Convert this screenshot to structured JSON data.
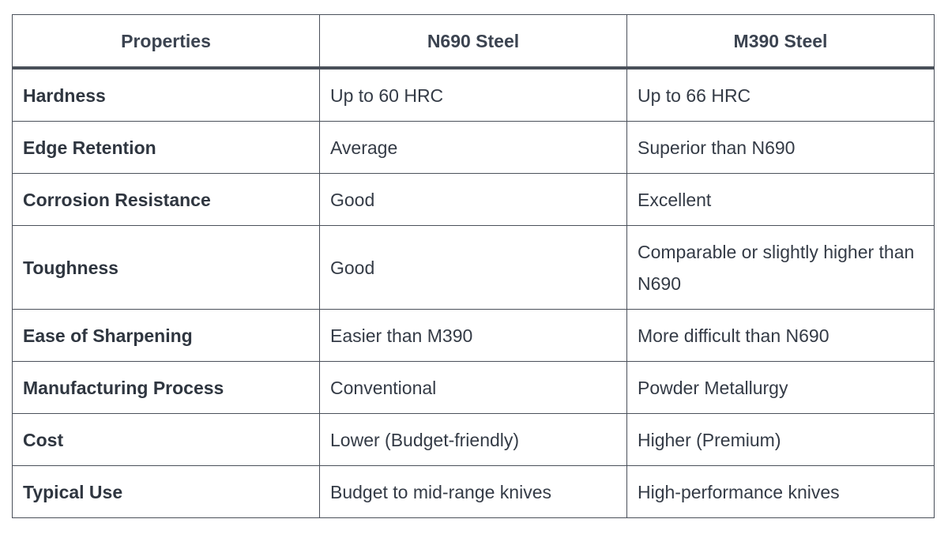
{
  "table": {
    "headers": [
      "Properties",
      "N690 Steel",
      "M390 Steel"
    ],
    "rows": [
      {
        "property": "Hardness",
        "n690": "Up to 60 HRC",
        "m390": "Up to 66 HRC"
      },
      {
        "property": "Edge Retention",
        "n690": "Average",
        "m390": "Superior than N690"
      },
      {
        "property": "Corrosion Resistance",
        "n690": "Good",
        "m390": "Excellent"
      },
      {
        "property": "Toughness",
        "n690": "Good",
        "m390": "Comparable or slightly higher than N690"
      },
      {
        "property": "Ease of Sharpening",
        "n690": "Easier than M390",
        "m390": "More difficult than N690"
      },
      {
        "property": "Manufacturing Process",
        "n690": "Conventional",
        "m390": "Powder Metallurgy"
      },
      {
        "property": "Cost",
        "n690": "Lower (Budget-friendly)",
        "m390": "Higher (Premium)"
      },
      {
        "property": "Typical Use",
        "n690": "Budget to mid-range knives",
        "m390": "High-performance knives"
      }
    ]
  }
}
